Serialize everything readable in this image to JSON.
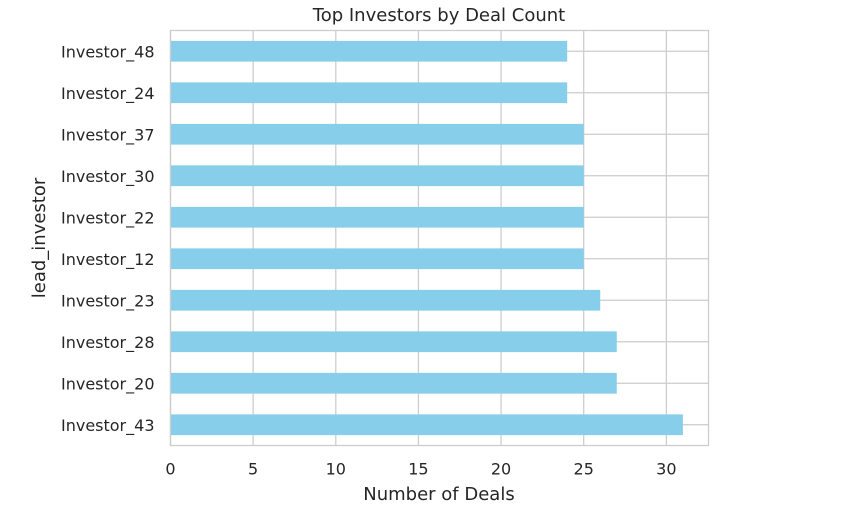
{
  "chart_data": {
    "type": "bar",
    "orientation": "horizontal",
    "title": "Top Investors by Deal Count",
    "xlabel": "Number of Deals",
    "ylabel": "lead_investor",
    "categories": [
      "Investor_43",
      "Investor_20",
      "Investor_28",
      "Investor_23",
      "Investor_12",
      "Investor_22",
      "Investor_30",
      "Investor_37",
      "Investor_24",
      "Investor_48"
    ],
    "values": [
      31,
      27,
      27,
      26,
      25,
      25,
      25,
      25,
      24,
      24
    ],
    "xlim": [
      0,
      32.55
    ],
    "xticks": [
      0,
      5,
      10,
      15,
      20,
      25,
      30
    ],
    "grid": true,
    "bar_color": "#87CEEB",
    "grid_color": "#cccccc",
    "spine_color": "#cccccc"
  }
}
